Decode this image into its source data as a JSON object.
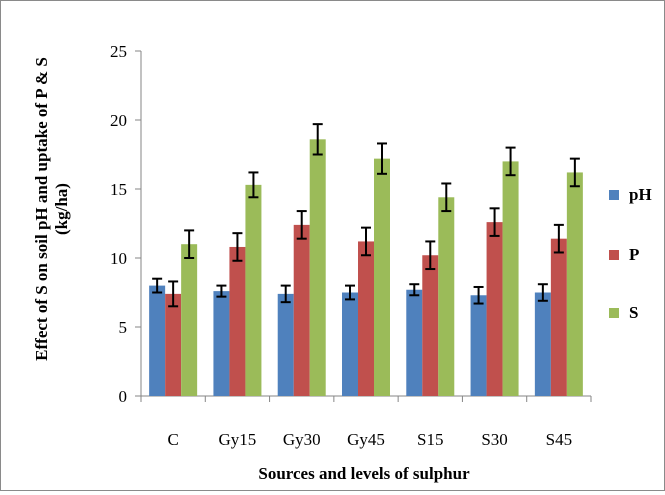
{
  "chart_data": {
    "type": "bar",
    "title": "",
    "xlabel": "Sources and levels of sulphur",
    "ylabel": "Effect of S on soil pH and uptake of P & S (kg/ha)",
    "ylim": [
      0,
      25
    ],
    "yticks": [
      0,
      5,
      10,
      15,
      20,
      25
    ],
    "grid": false,
    "legend_position": "right",
    "categories": [
      "C",
      "Gy15",
      "Gy30",
      "Gy45",
      "S15",
      "S30",
      "S45"
    ],
    "series": [
      {
        "name": "pH",
        "color": "#4f81bd",
        "values": [
          8.0,
          7.6,
          7.4,
          7.5,
          7.7,
          7.3,
          7.5
        ],
        "errors": [
          0.5,
          0.4,
          0.6,
          0.5,
          0.4,
          0.6,
          0.6
        ]
      },
      {
        "name": "P",
        "color": "#c0504d",
        "values": [
          7.4,
          10.8,
          12.4,
          11.2,
          10.2,
          12.6,
          11.4
        ],
        "errors": [
          0.9,
          1.0,
          1.0,
          1.0,
          1.0,
          1.0,
          1.0
        ]
      },
      {
        "name": "S",
        "color": "#9bbb59",
        "values": [
          11.0,
          15.3,
          18.6,
          17.2,
          14.4,
          17.0,
          16.2
        ],
        "errors": [
          1.0,
          0.9,
          1.1,
          1.1,
          1.0,
          1.0,
          1.0
        ]
      }
    ]
  }
}
